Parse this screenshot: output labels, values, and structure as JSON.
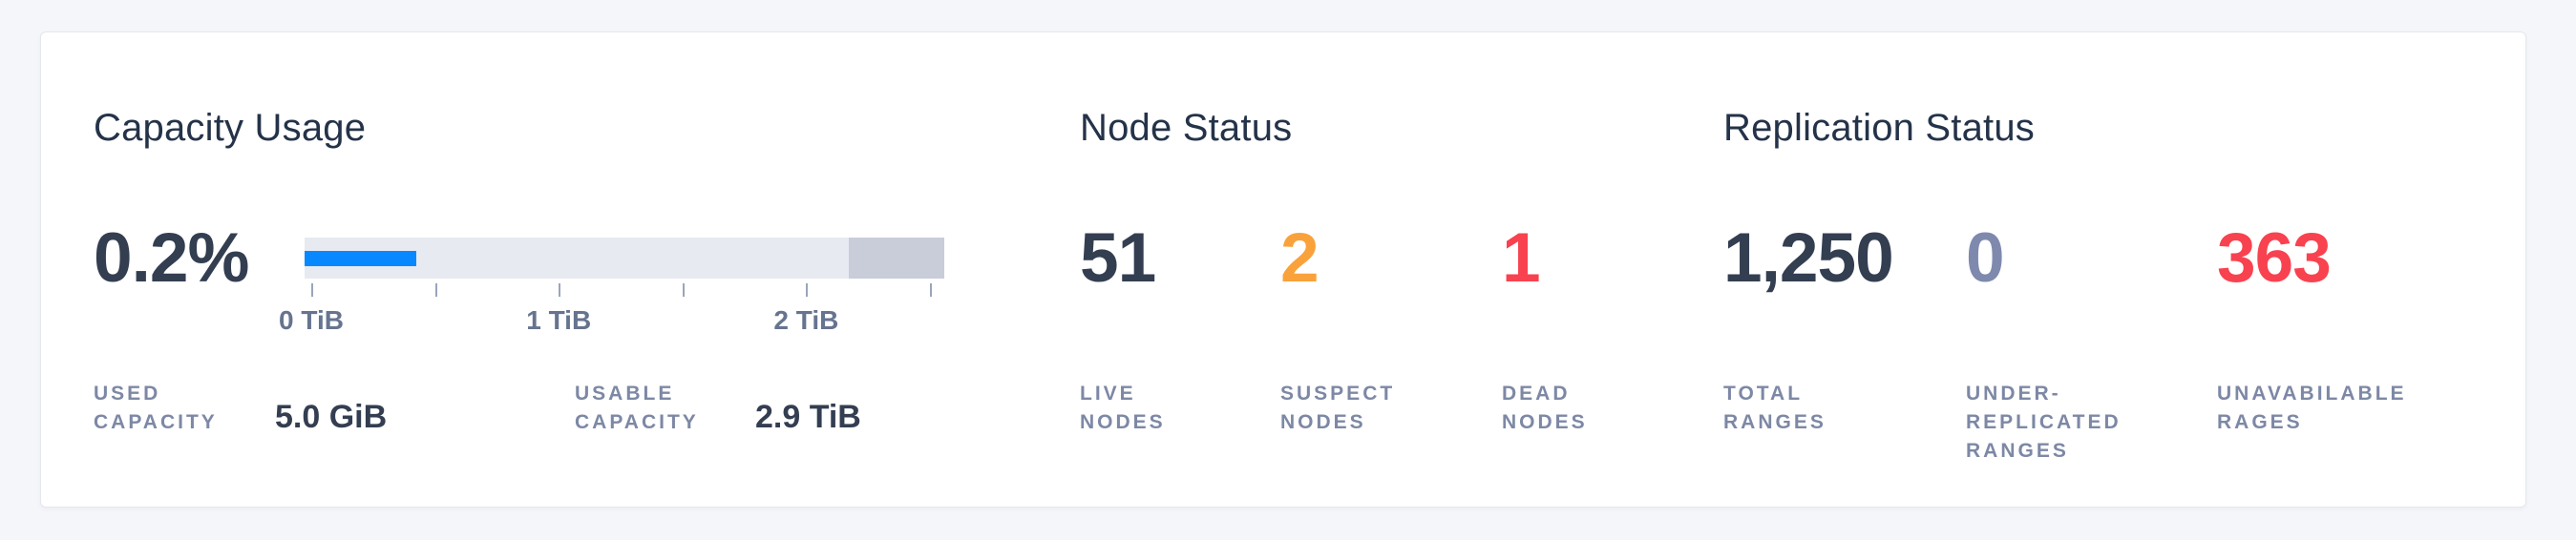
{
  "colors": {
    "page_bg": "#f4f6f9",
    "card_bg": "#ffffff",
    "card_border": "#e4e8ee",
    "title": "#243349",
    "dark": "#333e51",
    "orange": "#f9a23c",
    "red": "#f8424f",
    "muted": "#7e89ad",
    "label": "#7d88a5",
    "accent_blue": "#0788ff",
    "track": "#e7eaf0",
    "reserved": "#c8cdd9",
    "tick": "#9aa5bb",
    "tick_label": "#66748f"
  },
  "capacity": {
    "title": "Capacity Usage",
    "percent": "0.2%",
    "stats": [
      {
        "label_lines": [
          "USED",
          "CAPACITY"
        ],
        "value": "5.0 GiB"
      },
      {
        "label_lines": [
          "USABLE",
          "CAPACITY"
        ],
        "value": "2.9 TiB"
      }
    ]
  },
  "chart_data": {
    "type": "bar",
    "title": "Capacity Usage",
    "percent_used": 0.2,
    "percent_used_label": "0.2%",
    "used_capacity": "5.0 GiB",
    "usable_capacity": "2.9 TiB",
    "axis_unit": "TiB",
    "axis_ticks": [
      0,
      0.5,
      1,
      1.5,
      2,
      2.5
    ],
    "axis_tick_labels": [
      "0 TiB",
      "1 TiB",
      "2 TiB"
    ],
    "used_bar_display_fraction": 0.175,
    "reserved_segment_fraction": 0.15
  },
  "node_status": {
    "title": "Node Status",
    "stats": [
      {
        "value": "51",
        "tone": "dark",
        "label_lines": [
          "LIVE",
          "NODES"
        ]
      },
      {
        "value": "2",
        "tone": "orange",
        "label_lines": [
          "SUSPECT",
          "NODES"
        ]
      },
      {
        "value": "1",
        "tone": "red",
        "label_lines": [
          "DEAD",
          "NODES"
        ]
      }
    ]
  },
  "replication_status": {
    "title": "Replication Status",
    "stats": [
      {
        "value": "1,250",
        "tone": "dark",
        "label_lines": [
          "TOTAL",
          "RANGES"
        ]
      },
      {
        "value": "0",
        "tone": "muted",
        "label_lines": [
          "UNDER-",
          "REPLICATED",
          "RANGES"
        ]
      },
      {
        "value": "363",
        "tone": "red",
        "label_lines": [
          "UNAVABILABLE",
          "RAGES"
        ]
      }
    ]
  }
}
